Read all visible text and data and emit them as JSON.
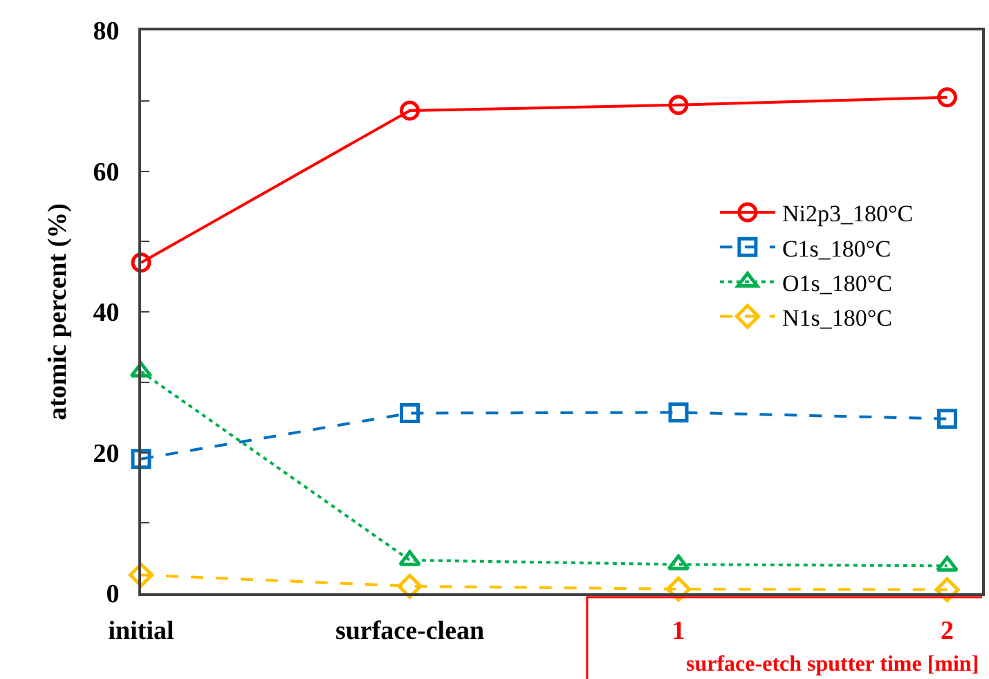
{
  "chart_data": {
    "type": "line",
    "categories": [
      "initial",
      "surface-clean",
      "1",
      "2"
    ],
    "ylabel": "atomic percent (%)",
    "ylim": [
      0,
      80
    ],
    "yticks": [
      0,
      {
        "value": 10,
        "label": null
      },
      20,
      {
        "value": 30,
        "label": null
      },
      40,
      {
        "value": 50,
        "label": null
      },
      60,
      {
        "value": 70,
        "label": null
      },
      80
    ],
    "series": [
      {
        "name": "Ni2p3_180°C",
        "color": "#ff0000",
        "values": [
          47.0,
          68.6,
          69.4,
          70.5
        ],
        "marker": "circle",
        "line_style": "solid"
      },
      {
        "name": "C1s_180°C",
        "color": "#0070c0",
        "values": [
          19.1,
          25.6,
          25.7,
          24.8
        ],
        "marker": "square",
        "line_style": "dashed"
      },
      {
        "name": "O1s_180°C",
        "color": "#00b050",
        "values": [
          31.5,
          4.7,
          4.1,
          3.9
        ],
        "marker": "triangle",
        "line_style": "dotted"
      },
      {
        "name": "N1s_180°C",
        "color": "#ffc000",
        "values": [
          2.6,
          1.0,
          0.6,
          0.5
        ],
        "marker": "diamond",
        "line_style": "dashed"
      }
    ],
    "legend": "right",
    "annotations": [
      "surface-etch sputter time [min]"
    ]
  }
}
